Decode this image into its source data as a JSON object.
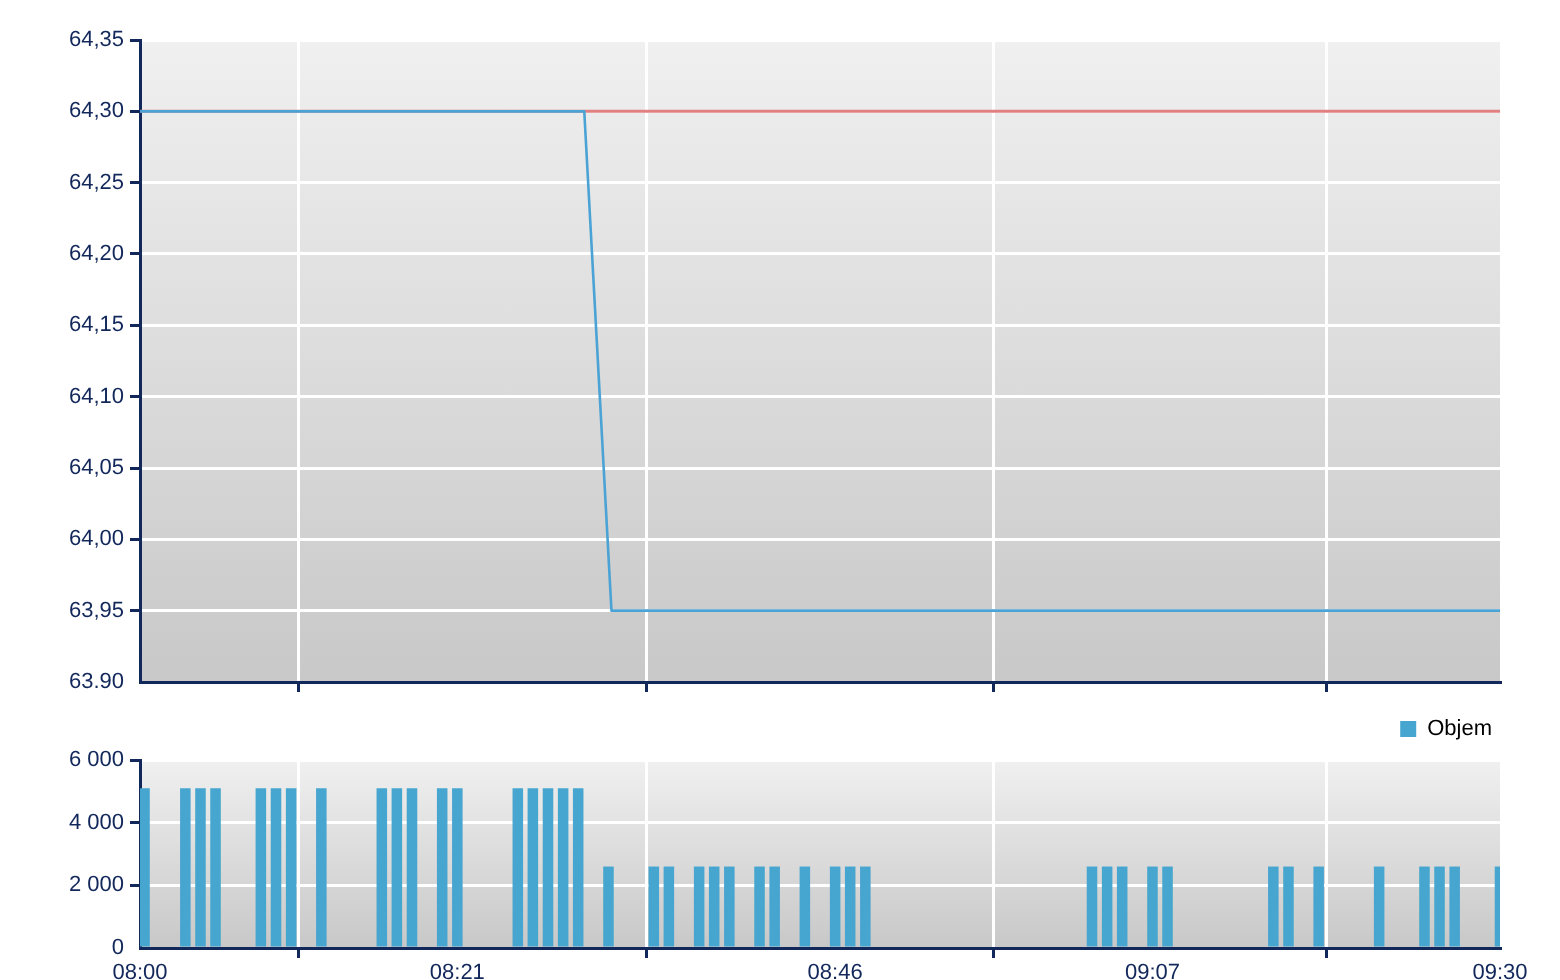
{
  "chart_data": [
    {
      "type": "line",
      "x": [
        8,
        8.49,
        8.52,
        9.5
      ],
      "series": [
        {
          "color": "#4aa3d4",
          "values": [
            64.3,
            64.3,
            63.95,
            63.95
          ]
        }
      ],
      "xlim": [
        8,
        9.5
      ],
      "xticks": [
        {
          "value": 8,
          "label": null
        },
        {
          "value": 8.35,
          "label": null
        },
        {
          "value": 8.7667,
          "label": null
        },
        {
          "value": 9.1167,
          "label": null
        },
        {
          "value": 9.5,
          "label": null
        }
      ],
      "ylim": [
        63.9,
        64.35
      ],
      "yticks": [
        {
          "value": 63.9,
          "label": "63.90"
        },
        {
          "value": 63.95,
          "label": "63,95"
        },
        {
          "value": 64,
          "label": "64,00"
        },
        {
          "value": 64.05,
          "label": "64,05"
        },
        {
          "value": 64.1,
          "label": "64,10"
        },
        {
          "value": 64.15,
          "label": "64,15"
        },
        {
          "value": 64.2,
          "label": "64,20"
        },
        {
          "value": 64.25,
          "label": "64,25"
        },
        {
          "value": 64.3,
          "label": "64,30"
        },
        {
          "value": 64.35,
          "label": "64,35"
        }
      ],
      "grid": true,
      "tick_labels": "y",
      "marker": "none",
      "ref_lines": [
        {
          "axis": "y",
          "value": 64.3,
          "color": "#e08080"
        }
      ]
    },
    {
      "type": "bar",
      "x": [
        8.005,
        8.05,
        8.0667,
        8.0833,
        8.1333,
        8.15,
        8.1667,
        8.2,
        8.2667,
        8.2833,
        8.3,
        8.3333,
        8.35,
        8.4167,
        8.4333,
        8.45,
        8.4667,
        8.4833,
        8.5167,
        8.5667,
        8.5833,
        8.6167,
        8.6333,
        8.65,
        8.6833,
        8.7,
        8.7333,
        8.7667,
        8.7833,
        8.8,
        9.05,
        9.0667,
        9.0833,
        9.1167,
        9.1333,
        9.25,
        9.2667,
        9.3,
        9.3667,
        9.4167,
        9.4333,
        9.45,
        9.5
      ],
      "series": [
        {
          "name": "Objem",
          "color": "#46a6cf",
          "values": [
            5100,
            5100,
            5100,
            5100,
            5100,
            5100,
            5100,
            5100,
            5100,
            5100,
            5100,
            5100,
            5100,
            5100,
            5100,
            5100,
            5100,
            5100,
            2600,
            2600,
            2600,
            2600,
            2600,
            2600,
            2600,
            2600,
            2600,
            2600,
            2600,
            2600,
            2600,
            2600,
            2600,
            2600,
            2600,
            2600,
            2600,
            2600,
            2600,
            2600,
            2600,
            2600,
            2600
          ]
        }
      ],
      "xlim": [
        8,
        9.5
      ],
      "xticks": [
        {
          "value": 8,
          "label": "08:00"
        },
        {
          "value": 8.35,
          "label": "08:21"
        },
        {
          "value": 8.7667,
          "label": "08:46"
        },
        {
          "value": 9.1167,
          "label": "09:07"
        },
        {
          "value": 9.5,
          "label": "09:30"
        }
      ],
      "ylim": [
        0,
        6000
      ],
      "yticks": [
        0,
        {
          "value": 2000,
          "label": "2 000"
        },
        {
          "value": 4000,
          "label": "4 000"
        },
        {
          "value": 6000,
          "label": "6 000"
        }
      ],
      "grid": true,
      "legend": "top right"
    }
  ]
}
